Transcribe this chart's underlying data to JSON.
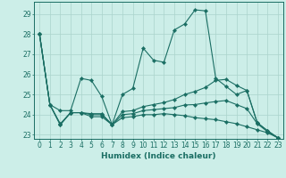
{
  "xlabel": "Humidex (Indice chaleur)",
  "bg_color": "#cceee8",
  "grid_color": "#aad4cc",
  "line_color": "#1a6e63",
  "xlim": [
    -0.5,
    23.5
  ],
  "ylim": [
    22.8,
    29.6
  ],
  "yticks": [
    23,
    24,
    25,
    26,
    27,
    28,
    29
  ],
  "xticks": [
    0,
    1,
    2,
    3,
    4,
    5,
    6,
    7,
    8,
    9,
    10,
    11,
    12,
    13,
    14,
    15,
    16,
    17,
    18,
    19,
    20,
    21,
    22,
    23
  ],
  "series": [
    [
      28.0,
      24.5,
      24.2,
      24.2,
      25.8,
      25.7,
      24.9,
      23.5,
      25.0,
      25.3,
      27.3,
      26.7,
      26.6,
      28.2,
      28.5,
      29.2,
      29.15,
      25.8,
      25.4,
      25.0,
      25.2,
      23.6,
      23.2,
      22.85
    ],
    [
      28.0,
      24.5,
      23.5,
      24.1,
      24.1,
      24.0,
      24.0,
      23.5,
      24.15,
      24.2,
      24.4,
      24.5,
      24.6,
      24.75,
      25.0,
      25.15,
      25.35,
      25.7,
      25.75,
      25.45,
      25.2,
      23.6,
      23.2,
      22.85
    ],
    [
      28.0,
      24.5,
      23.5,
      24.1,
      24.1,
      23.9,
      23.9,
      23.5,
      23.85,
      23.9,
      24.0,
      24.0,
      24.05,
      24.0,
      23.95,
      23.85,
      23.8,
      23.75,
      23.65,
      23.55,
      23.4,
      23.25,
      23.1,
      22.85
    ],
    [
      28.0,
      24.5,
      23.55,
      24.1,
      24.1,
      24.05,
      24.05,
      23.5,
      24.0,
      24.05,
      24.2,
      24.25,
      24.3,
      24.35,
      24.48,
      24.5,
      24.58,
      24.65,
      24.7,
      24.5,
      24.3,
      23.55,
      23.15,
      22.85
    ]
  ]
}
